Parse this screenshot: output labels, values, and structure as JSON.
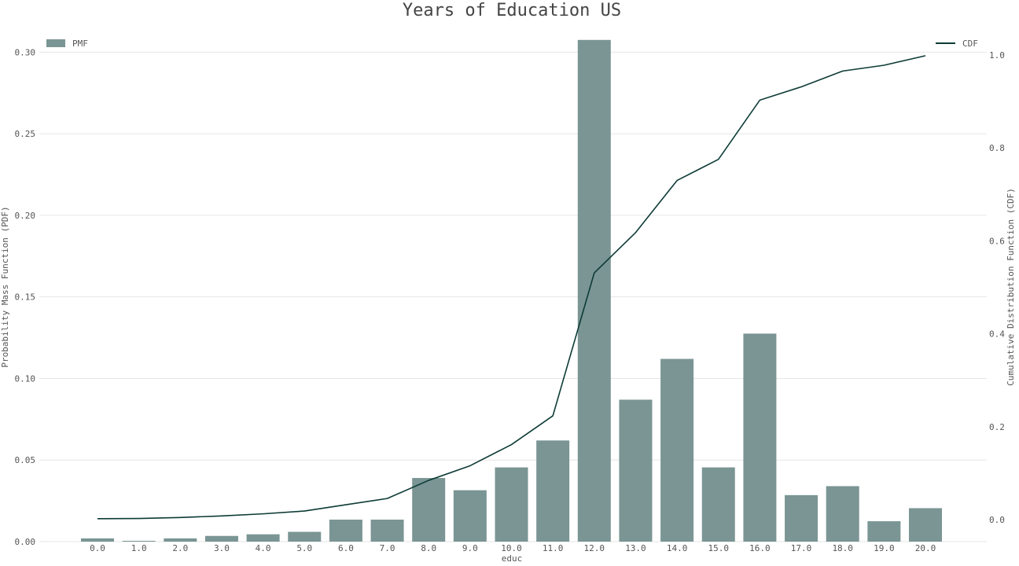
{
  "chart_data": {
    "type": "bar",
    "title": "Years of Education US",
    "xlabel": "educ",
    "ylabel_left": "Probability Mass Function (PDF)",
    "ylabel_right": "Cumulative Distribution Function (CDF)",
    "categories": [
      "0.0",
      "1.0",
      "2.0",
      "3.0",
      "4.0",
      "5.0",
      "6.0",
      "7.0",
      "8.0",
      "9.0",
      "10.0",
      "11.0",
      "12.0",
      "13.0",
      "14.0",
      "15.0",
      "16.0",
      "17.0",
      "18.0",
      "19.0",
      "20.0"
    ],
    "series": [
      {
        "name": "PMF",
        "type": "bar",
        "axis": "left",
        "values": [
          0.002,
          0.0005,
          0.002,
          0.0035,
          0.0045,
          0.006,
          0.0135,
          0.0135,
          0.039,
          0.0315,
          0.0455,
          0.062,
          0.3075,
          0.087,
          0.112,
          0.0455,
          0.1275,
          0.0285,
          0.034,
          0.0125,
          0.0205
        ]
      },
      {
        "name": "CDF",
        "type": "line",
        "axis": "right",
        "values": [
          0.002,
          0.0025,
          0.0045,
          0.008,
          0.0125,
          0.0185,
          0.032,
          0.0455,
          0.0845,
          0.116,
          0.1615,
          0.2235,
          0.531,
          0.618,
          0.73,
          0.7755,
          0.903,
          0.9315,
          0.9655,
          0.978,
          0.9985
        ]
      }
    ],
    "ylim_left": [
      0,
      0.31
    ],
    "ylim_right": [
      -0.04,
      1.045
    ],
    "yticks_left": [
      "0.00",
      "0.05",
      "0.10",
      "0.15",
      "0.20",
      "0.25",
      "0.30"
    ],
    "yticks_right": [
      "0.0",
      "0.2",
      "0.4",
      "0.6",
      "0.8",
      "1.0"
    ],
    "legend_left": "top-left",
    "legend_right": "top-right",
    "grid": true,
    "colors": {
      "bar": "#7a9594",
      "line": "#0d3b36"
    }
  }
}
